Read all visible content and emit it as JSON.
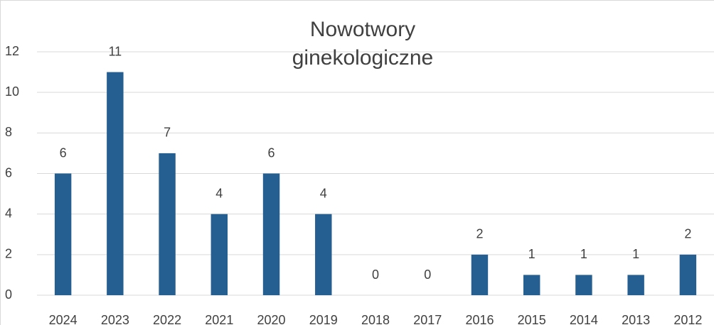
{
  "chart_data": {
    "type": "bar",
    "title": "Nowotwory ginekologiczne",
    "categories": [
      "2024",
      "2023",
      "2022",
      "2021",
      "2020",
      "2019",
      "2018",
      "2017",
      "2016",
      "2015",
      "2014",
      "2013",
      "2012"
    ],
    "values": [
      6,
      11,
      7,
      4,
      6,
      4,
      0,
      0,
      2,
      1,
      1,
      1,
      2
    ],
    "color": "#255e91",
    "ylim": [
      0,
      12
    ],
    "yticks": [
      0,
      2,
      4,
      6,
      8,
      10,
      12
    ],
    "grid": true
  }
}
